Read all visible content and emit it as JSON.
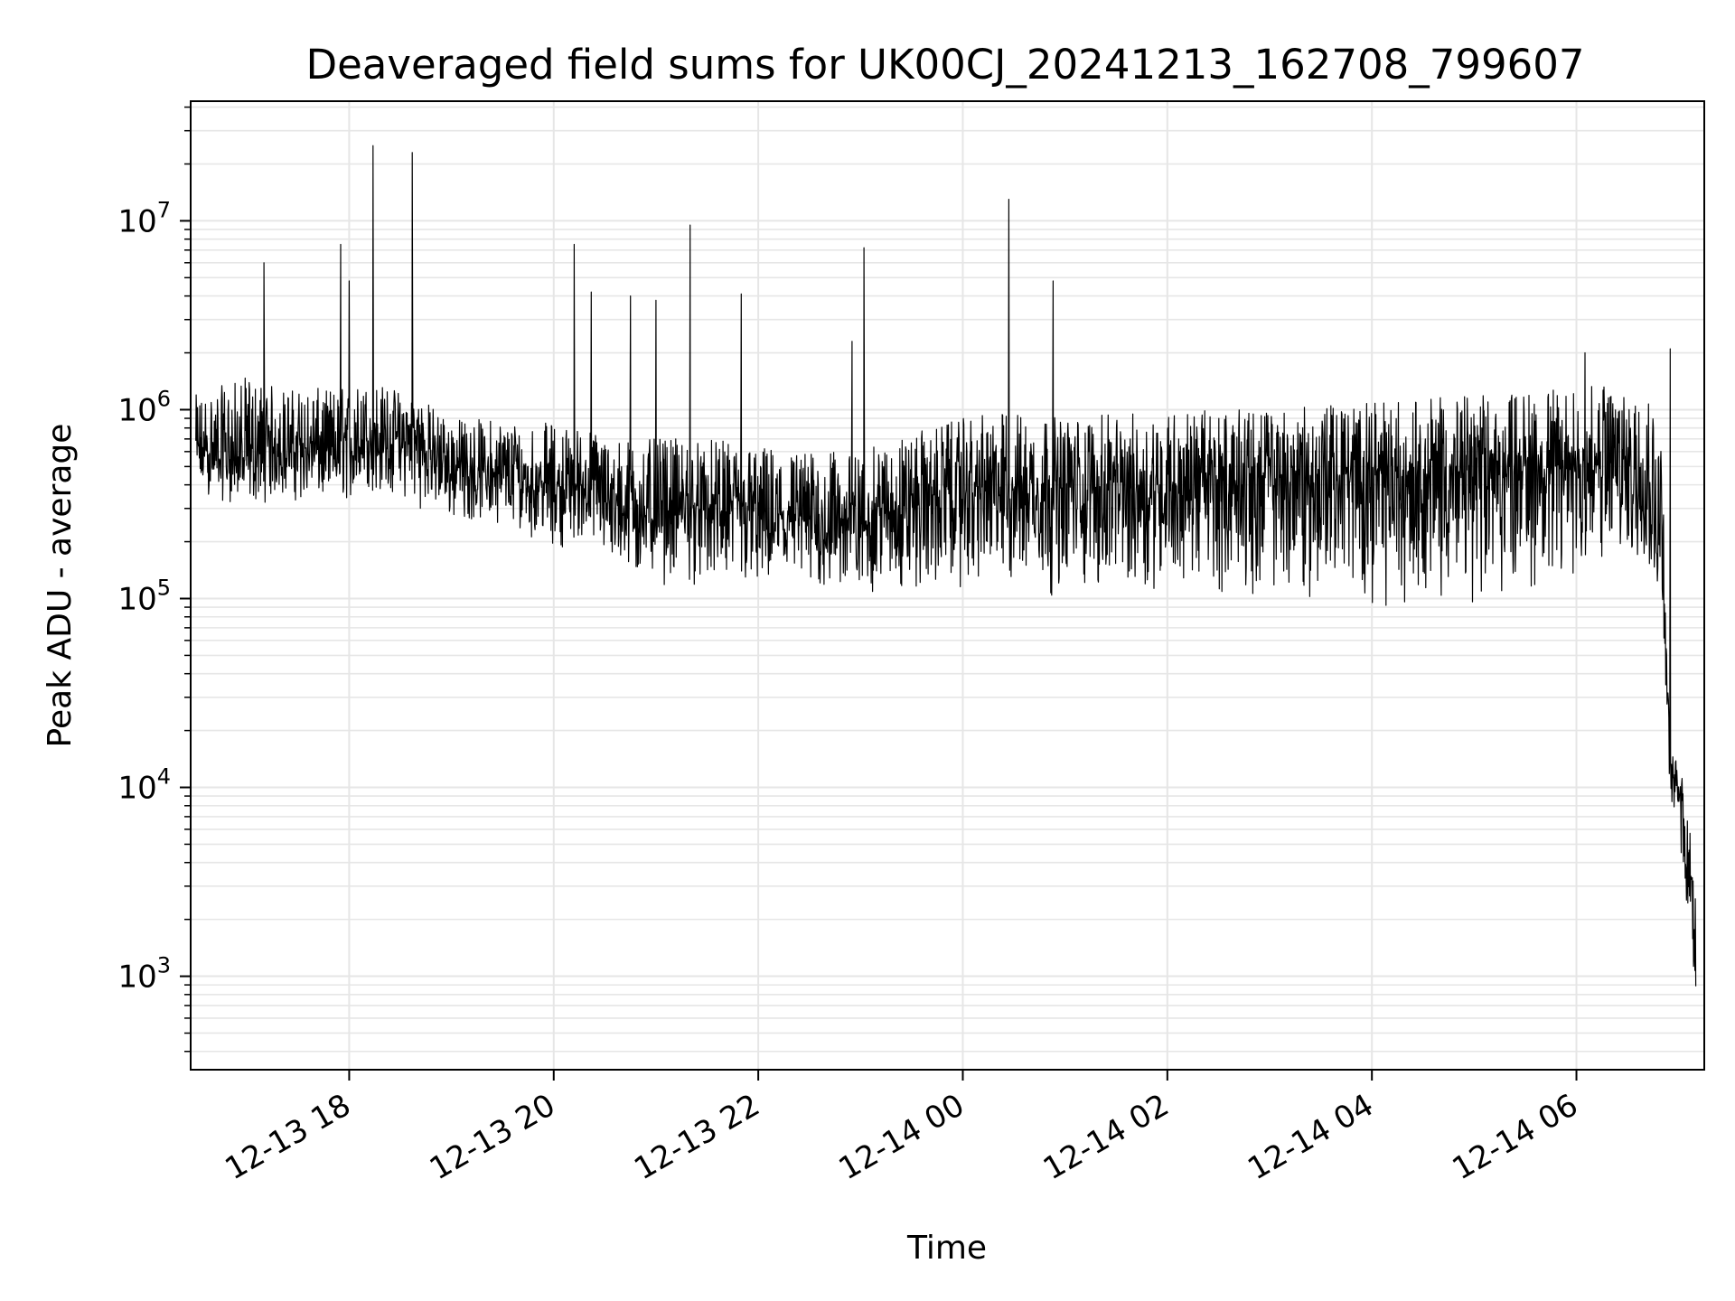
{
  "chart_data": {
    "type": "line",
    "title": "Deaveraged field sums for UK00CJ_20241213_162708_799607",
    "xlabel": "Time",
    "ylabel": "Peak ADU - average",
    "yscale": "log",
    "ylim": [
      320,
      43000000
    ],
    "xlim": [
      "2024-12-13 16:27",
      "2024-12-14 07:15"
    ],
    "grid": true,
    "x_ticks": [
      "12-13 18",
      "12-13 20",
      "12-13 22",
      "12-14 00",
      "12-14 02",
      "12-14 04",
      "12-14 06"
    ],
    "y_ticks": [
      {
        "base": "10",
        "exp": "3",
        "value": 1000
      },
      {
        "base": "10",
        "exp": "4",
        "value": 10000
      },
      {
        "base": "10",
        "exp": "5",
        "value": 100000
      },
      {
        "base": "10",
        "exp": "6",
        "value": 1000000
      },
      {
        "base": "10",
        "exp": "7",
        "value": 10000000
      }
    ],
    "series": [
      {
        "color": "#000000",
        "x": [
          "2024-12-13 16:30",
          "2024-12-13 17:00",
          "2024-12-13 17:20",
          "2024-12-13 17:50",
          "2024-12-13 18:15",
          "2024-12-13 18:40",
          "2024-12-13 19:00",
          "2024-12-13 19:30",
          "2024-12-13 20:00",
          "2024-12-13 20:20",
          "2024-12-13 20:40",
          "2024-12-13 21:30",
          "2024-12-13 22:00",
          "2024-12-13 22:30",
          "2024-12-13 23:00",
          "2024-12-13 23:30",
          "2024-12-14 00:00",
          "2024-12-14 00:30",
          "2024-12-14 01:00",
          "2024-12-14 02:00",
          "2024-12-14 03:00",
          "2024-12-14 04:00",
          "2024-12-14 05:00",
          "2024-12-14 06:00",
          "2024-12-14 06:40",
          "2024-12-14 06:50",
          "2024-12-14 06:55",
          "2024-12-14 07:00",
          "2024-12-14 07:05",
          "2024-12-14 07:10"
        ],
        "y": [
          600000,
          550000,
          650000,
          600000,
          700000,
          680000,
          500000,
          450000,
          400000,
          400000,
          300000,
          300000,
          280000,
          260000,
          260000,
          330000,
          380000,
          400000,
          380000,
          400000,
          430000,
          450000,
          500000,
          500000,
          520000,
          250000,
          12000,
          10000,
          5000,
          2000
        ],
        "envelope_low": [
          350000,
          300000,
          330000,
          300000,
          350000,
          300000,
          250000,
          250000,
          180000,
          200000,
          120000,
          110000,
          100000,
          100000,
          100000,
          100000,
          110000,
          100000,
          100000,
          110000,
          100000,
          90000,
          90000,
          120000,
          150000,
          90000,
          8000,
          4000,
          1500,
          600
        ],
        "envelope_high": [
          1200000,
          1500000,
          1300000,
          1300000,
          1400000,
          1200000,
          900000,
          900000,
          850000,
          800000,
          700000,
          700000,
          650000,
          600000,
          600000,
          750000,
          900000,
          1000000,
          900000,
          1000000,
          1000000,
          1100000,
          1200000,
          1300000,
          1500000,
          900000,
          15000,
          14000,
          8000,
          3500
        ],
        "spikes": [
          {
            "x": "2024-12-13 17:10",
            "y": 6000000
          },
          {
            "x": "2024-12-13 17:55",
            "y": 7500000
          },
          {
            "x": "2024-12-13 18:00",
            "y": 4800000
          },
          {
            "x": "2024-12-13 18:14",
            "y": 25000000
          },
          {
            "x": "2024-12-13 18:37",
            "y": 23000000
          },
          {
            "x": "2024-12-13 20:12",
            "y": 7500000
          },
          {
            "x": "2024-12-13 20:22",
            "y": 4200000
          },
          {
            "x": "2024-12-13 20:45",
            "y": 4000000
          },
          {
            "x": "2024-12-13 21:00",
            "y": 3800000
          },
          {
            "x": "2024-12-13 21:20",
            "y": 9500000
          },
          {
            "x": "2024-12-13 21:50",
            "y": 4100000
          },
          {
            "x": "2024-12-13 22:55",
            "y": 2300000
          },
          {
            "x": "2024-12-13 23:02",
            "y": 7200000
          },
          {
            "x": "2024-12-14 00:27",
            "y": 13000000
          },
          {
            "x": "2024-12-14 00:53",
            "y": 4800000
          },
          {
            "x": "2024-12-14 06:05",
            "y": 2000000
          },
          {
            "x": "2024-12-14 06:55",
            "y": 2100000
          }
        ]
      }
    ]
  }
}
